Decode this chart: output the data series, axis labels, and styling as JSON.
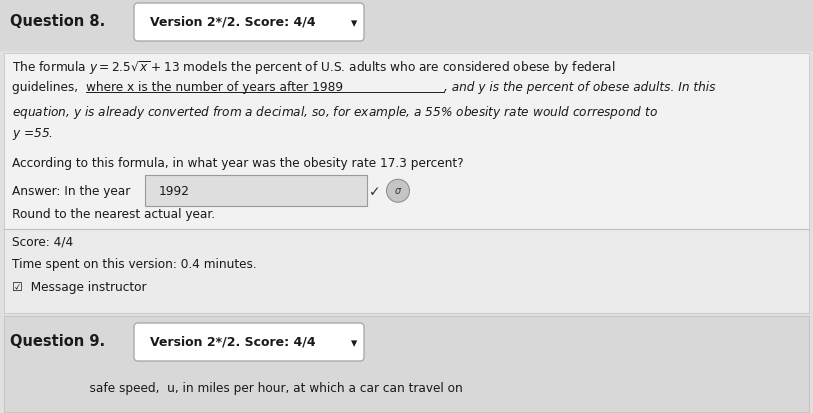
{
  "bg_color": "#e0e0e0",
  "header_bg": "#d8d8d8",
  "content_bg": "#f2f2f2",
  "score_bg": "#ebebeb",
  "q9_bg": "#d8d8d8",
  "white": "#ffffff",
  "font_color": "#1a1a1a",
  "question_label": "Question 8.",
  "version_score": "Version 2*/2. Score: 4/4",
  "line1": "The formula $y = 2.5\\sqrt{x} + 13$ models the percent of U.S. adults who are considered obese by federal",
  "line2_pre": "guidelines, ",
  "line2_underline": "where x is the number of years after 1989",
  "line2_post": ", and y is the percent of obese adults. In this",
  "line3": "equation, y is already converted from a decimal, so, for example, a 55% obesity rate would correspond to",
  "line4": "y =55.",
  "question_text": "According to this formula, in what year was the obesity rate 17.3 percent?",
  "answer_prefix": "Answer: In the year",
  "answer_value": "1992",
  "round_note": "Round to the nearest actual year.",
  "score_line": "Score: 4/4",
  "time_line": "Time spent on this version: 0.4 minutes.",
  "message_line": "Message instructor",
  "q9_label": "Question 9.",
  "q9_version": "Version 2*/2. Score: 4/4",
  "q9_bottom": "                    safe speed,  u, in miles per hour, at which a car can travel on",
  "fs": 8.7,
  "lh": 0.225,
  "fig_width": 8.13,
  "fig_height": 4.14
}
